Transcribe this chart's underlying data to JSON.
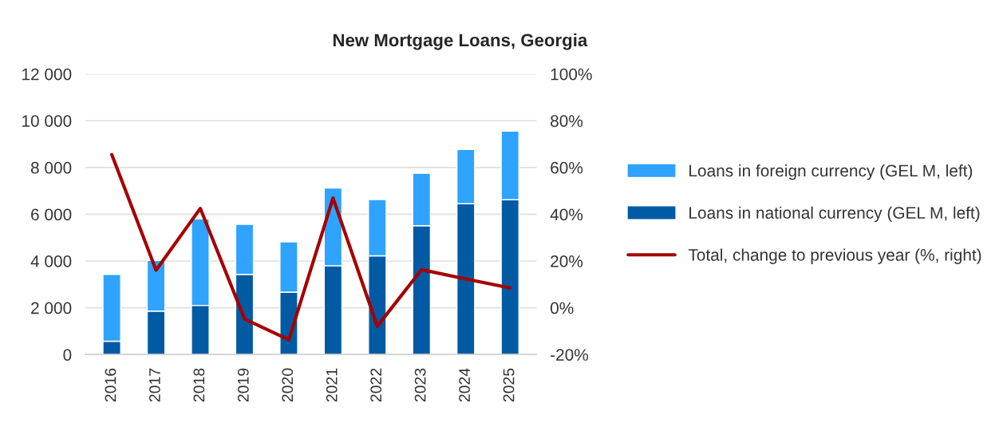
{
  "chart_data": {
    "type": "bar",
    "title": "New Mortgage Loans, Georgia",
    "stacked": true,
    "grid": "y",
    "legend": "right",
    "categories": [
      "2016",
      "2017",
      "2018",
      "2019",
      "2020",
      "2021",
      "2022",
      "2023",
      "2024",
      "2025"
    ],
    "series": [
      {
        "name": "Loans in national currency (GEL M, left)",
        "color": "#005ba4",
        "values": [
          570,
          1860,
          2100,
          3430,
          2670,
          3800,
          4220,
          5510,
          6450,
          6620
        ]
      },
      {
        "name": "Loans in foreign currency (GEL M, left)",
        "color": "#2ea3ff",
        "values": [
          2860,
          2160,
          3700,
          2140,
          2150,
          3320,
          2410,
          2240,
          2320,
          2930
        ]
      },
      {
        "name": "Total, change to previous year (%, right)",
        "type": "line",
        "axis": "y2",
        "color": "#a50000",
        "values": [
          65.5,
          16.1,
          42.5,
          -4.8,
          -13.7,
          46.9,
          -7.9,
          16.3,
          12.3,
          8.5
        ]
      }
    ],
    "ylim": [
      0,
      12000
    ],
    "yticks": [
      {
        "value": 0,
        "label": "0"
      },
      {
        "value": 2000,
        "label": "2 000"
      },
      {
        "value": 4000,
        "label": "4 000"
      },
      {
        "value": 6000,
        "label": "6 000"
      },
      {
        "value": 8000,
        "label": "8 000"
      },
      {
        "value": 10000,
        "label": "10 000"
      },
      {
        "value": 12000,
        "label": "12 000"
      }
    ],
    "y2lim": [
      -20,
      100
    ],
    "y2ticks": [
      {
        "value": -20,
        "label": "-20%"
      },
      {
        "value": 0,
        "label": "0%"
      },
      {
        "value": 20,
        "label": "20%"
      },
      {
        "value": 40,
        "label": "40%"
      },
      {
        "value": 60,
        "label": "60%"
      },
      {
        "value": 80,
        "label": "80%"
      },
      {
        "value": 100,
        "label": "100%"
      }
    ]
  }
}
